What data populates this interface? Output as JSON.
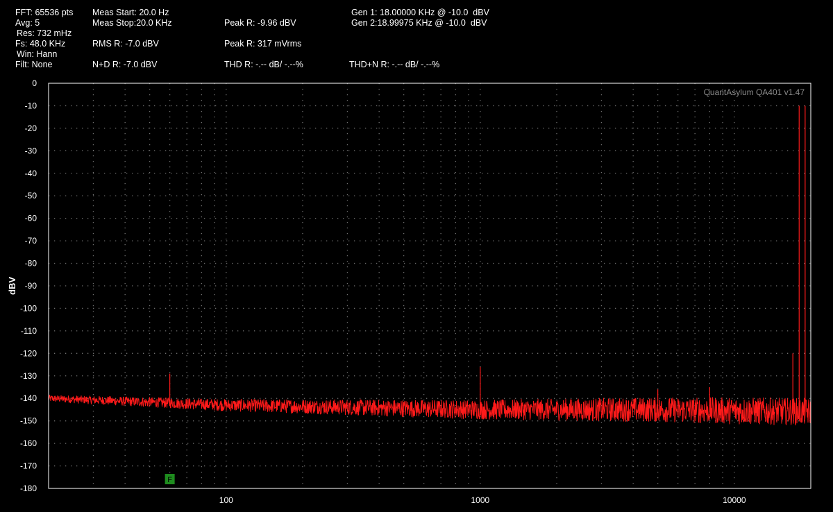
{
  "header": {
    "fft": "FFT: 65536 pts",
    "avg": "Avg: 5",
    "res": "Res: 732 mHz",
    "fs": "Fs: 48.0 KHz",
    "win": "Win: Hann",
    "filt": "Filt: None",
    "meas_start": "Meas Start: 20.0 Hz",
    "meas_stop": "Meas Stop:20.0 KHz",
    "rms": "RMS R: -7.0 dBV",
    "nd": "N+D R: -7.0 dBV",
    "peak_dbv": "Peak R: -9.96 dBV",
    "peak_mv": "Peak R: 317 mVrms",
    "thd": "THD R: -.-- dB/ -.--%",
    "gen1": "Gen 1: 18.00000 KHz @ -10.0  dBV",
    "gen2": "Gen 2:18.99975 KHz @ -10.0  dBV",
    "thdn": "THD+N R: -.-- dB/ -.--%"
  },
  "watermark": "QuantAsylum QA401 v1.47",
  "marker_label": "F",
  "colors": {
    "trace": "#ff1a1a",
    "grid": "#707070",
    "frame": "#ffffff",
    "marker": "#1e8c1e"
  },
  "chart_data": {
    "type": "line",
    "x_scale": "log",
    "xlim": [
      20,
      20000
    ],
    "ylim": [
      -180,
      0
    ],
    "ylabel": "dBV",
    "xlabel": "",
    "xticks": [
      100,
      1000,
      10000
    ],
    "xtick_labels": [
      "100",
      "1000",
      "10000"
    ],
    "yticks": [
      0,
      -10,
      -20,
      -30,
      -40,
      -50,
      -60,
      -70,
      -80,
      -90,
      -100,
      -110,
      -120,
      -130,
      -140,
      -150,
      -160,
      -170,
      -180
    ],
    "ytick_labels": [
      "0",
      "-10",
      "-20",
      "-30",
      "-40",
      "-50",
      "-60",
      "-70",
      "-80",
      "-90",
      "-100",
      "-110",
      "-120",
      "-130",
      "-140",
      "-150",
      "-160",
      "-170",
      "-180"
    ],
    "grid": true,
    "series": [
      {
        "color": "#ff1a1a",
        "noise_floor": [
          [
            20,
            -140
          ],
          [
            100,
            -143
          ],
          [
            1000,
            -145
          ],
          [
            5000,
            -145
          ],
          [
            20000,
            -146
          ]
        ],
        "peaks": [
          {
            "x": 60,
            "y": -129
          },
          {
            "x": 1000,
            "y": -126
          },
          {
            "x": 5000,
            "y": -136
          },
          {
            "x": 8000,
            "y": -135
          },
          {
            "x": 17000,
            "y": -120
          },
          {
            "x": 18000,
            "y": -10
          },
          {
            "x": 19000,
            "y": -10
          }
        ]
      }
    ],
    "marker": {
      "x": 60,
      "y": -176,
      "label": "F"
    }
  }
}
